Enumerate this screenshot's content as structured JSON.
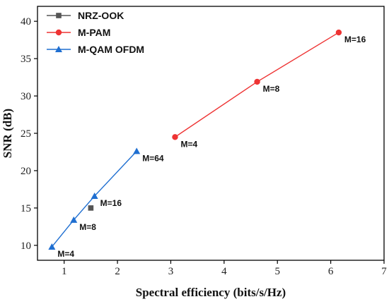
{
  "chart_data": {
    "type": "line",
    "title": "",
    "xlabel": "Spectral efficiency (bits/s/Hz)",
    "ylabel": "SNR (dB)",
    "xlim": [
      0.5,
      7
    ],
    "ylim": [
      8,
      42
    ],
    "xticks": [
      1,
      2,
      3,
      4,
      5,
      6,
      7
    ],
    "yticks": [
      10,
      15,
      20,
      25,
      30,
      35,
      40
    ],
    "grid": false,
    "legend_position": "top-left",
    "series": [
      {
        "name": "NRZ-OOK",
        "color": "#555555",
        "marker": "square",
        "x": [
          1.5
        ],
        "y": [
          15.0
        ],
        "labels": [
          ""
        ]
      },
      {
        "name": "M-PAM",
        "color": "#ee3333",
        "marker": "circle",
        "x": [
          3.08,
          4.62,
          6.15
        ],
        "y": [
          24.5,
          31.9,
          38.5
        ],
        "labels": [
          "M=4",
          "M=8",
          "M=16"
        ]
      },
      {
        "name": "M-QAM OFDM",
        "color": "#1f6fd1",
        "marker": "triangle",
        "x": [
          0.77,
          1.18,
          1.57,
          2.36
        ],
        "y": [
          9.8,
          13.4,
          16.6,
          22.6
        ],
        "labels": [
          "M=4",
          "M=8",
          "M=16",
          "M=64"
        ]
      }
    ]
  }
}
